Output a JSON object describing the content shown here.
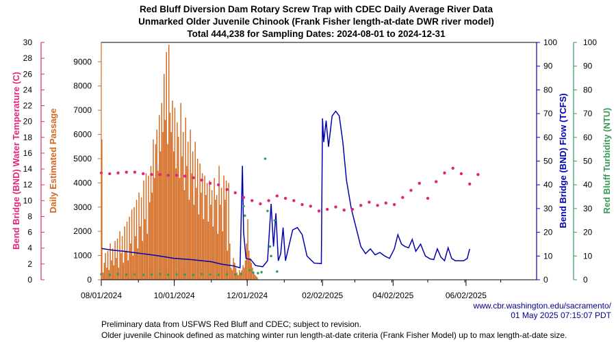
{
  "chart_data": {
    "type": "bar",
    "title_lines": [
      "Red Bluff Diversion Dam Rotary Screw Trap with CDEC Daily Average River Data",
      "Unmarked Older Juvenile Chinook (Frank Fisher length-at-date DWR river model)",
      "Total 444,238 for Sampling Dates: 2024-08-01 to 2024-12-31"
    ],
    "axes": {
      "temperature": {
        "label": "Bend Bridge (BND) Water Temperature (C)",
        "range": [
          0,
          30
        ],
        "ticks": [
          "0",
          "2",
          "4",
          "6",
          "8",
          "10",
          "12",
          "14",
          "16",
          "18",
          "20",
          "22",
          "24",
          "26",
          "28",
          "30"
        ],
        "color": "#e0257a"
      },
      "passage": {
        "label": "Daily Estimated Passage",
        "range": [
          0,
          9800
        ],
        "ticks": [
          "0",
          "1000",
          "2000",
          "3000",
          "4000",
          "5000",
          "6000",
          "7000",
          "8000",
          "9000"
        ],
        "color": "#d2691e"
      },
      "flow": {
        "label": "Bend Bridge (BND) Flow (TCFS)",
        "range": [
          0,
          100
        ],
        "ticks": [
          "0",
          "10",
          "20",
          "30",
          "40",
          "50",
          "60",
          "70",
          "80",
          "90",
          "100"
        ],
        "color": "#0000b0"
      },
      "turbidity": {
        "label": "Red Bluff Turbidity (NTU)",
        "range": [
          0,
          100
        ],
        "ticks": [
          "0",
          "10",
          "20",
          "30",
          "40",
          "50",
          "60",
          "70",
          "80",
          "90",
          "100"
        ],
        "color": "#3a9a5a"
      }
    },
    "x_axis": {
      "range": [
        "2024-08-01",
        "2025-07-31"
      ],
      "tick_labels": [
        "08/01/2024",
        "10/01/2024",
        "12/01/2024",
        "02/02/2025",
        "04/02/2025",
        "06/02/2025"
      ]
    },
    "series": [
      {
        "name": "Daily Estimated Passage",
        "kind": "bar",
        "color": "#d2691e",
        "axis": "passage",
        "x_start": "2024-08-01",
        "values": [
          5800,
          300,
          700,
          1100,
          500,
          1200,
          400,
          1500,
          800,
          1300,
          600,
          1600,
          900,
          1700,
          500,
          2000,
          1100,
          1800,
          700,
          2200,
          1200,
          2400,
          800,
          2600,
          1500,
          2900,
          1000,
          3000,
          1800,
          3300,
          1300,
          3600,
          2200,
          3400,
          1600,
          4100,
          2500,
          4400,
          1900,
          4300,
          3200,
          4700,
          3600,
          5800,
          4200,
          5600,
          6200,
          4500,
          6800,
          5300,
          7300,
          6100,
          8500,
          6600,
          9400,
          5600,
          9700,
          6900,
          6100,
          7400,
          5300,
          7100,
          4600,
          6500,
          5900,
          4200,
          7300,
          5100,
          6100,
          3700,
          6700,
          4700,
          5700,
          3300,
          6200,
          4400,
          5300,
          3100,
          5700,
          3800,
          5000,
          2700,
          4800,
          3600,
          4400,
          2500,
          4300,
          3500,
          4000,
          2400,
          4100,
          3100,
          3700,
          2200,
          4200,
          3300,
          3500,
          1900,
          4700,
          3100,
          3800,
          2000,
          4300,
          3300,
          4100,
          1200,
          4000,
          1500,
          500,
          400,
          900,
          700,
          500,
          300,
          200,
          400,
          300,
          400,
          600,
          500,
          800,
          1500,
          2500,
          1200,
          900,
          700,
          500,
          300,
          200,
          150,
          100
        ]
      },
      {
        "name": "Bend Bridge (BND) Water Temperature (C)",
        "kind": "scatter",
        "color": "#e0257a",
        "axis": "temperature",
        "points": [
          [
            "2024-08-01",
            13.5
          ],
          [
            "2024-08-08",
            13.4
          ],
          [
            "2024-08-15",
            13.5
          ],
          [
            "2024-08-22",
            13.6
          ],
          [
            "2024-08-29",
            13.6
          ],
          [
            "2024-09-05",
            13.4
          ],
          [
            "2024-09-12",
            13.3
          ],
          [
            "2024-09-19",
            13.3
          ],
          [
            "2024-09-26",
            13.2
          ],
          [
            "2024-10-03",
            13.2
          ],
          [
            "2024-10-10",
            13.1
          ],
          [
            "2024-10-17",
            12.9
          ],
          [
            "2024-10-24",
            12.6
          ],
          [
            "2024-10-31",
            12.2
          ],
          [
            "2024-11-07",
            12.0
          ],
          [
            "2024-11-14",
            11.4
          ],
          [
            "2024-11-21",
            11.0
          ],
          [
            "2024-11-28",
            10.4
          ],
          [
            "2024-12-05",
            10.0
          ],
          [
            "2024-12-12",
            9.6
          ],
          [
            "2024-12-19",
            10.0
          ],
          [
            "2024-12-26",
            10.6
          ],
          [
            "2025-01-02",
            10.3
          ],
          [
            "2025-01-09",
            10.0
          ],
          [
            "2025-01-16",
            9.5
          ],
          [
            "2025-01-23",
            9.3
          ],
          [
            "2025-01-30",
            8.7
          ],
          [
            "2025-02-06",
            8.9
          ],
          [
            "2025-02-13",
            9.2
          ],
          [
            "2025-02-20",
            8.8
          ],
          [
            "2025-02-27",
            8.9
          ],
          [
            "2025-03-06",
            9.4
          ],
          [
            "2025-03-13",
            9.8
          ],
          [
            "2025-03-20",
            9.4
          ],
          [
            "2025-03-27",
            9.7
          ],
          [
            "2025-04-03",
            9.5
          ],
          [
            "2025-04-10",
            10.4
          ],
          [
            "2025-04-17",
            11.3
          ],
          [
            "2025-04-24",
            12.2
          ],
          [
            "2025-05-01",
            10.3
          ],
          [
            "2025-05-08",
            12.4
          ],
          [
            "2025-05-15",
            13.5
          ],
          [
            "2025-05-22",
            14.1
          ],
          [
            "2025-05-29",
            13.4
          ],
          [
            "2025-06-05",
            12.1
          ],
          [
            "2025-06-12",
            13.3
          ]
        ]
      },
      {
        "name": "Bend Bridge (BND) Flow (TCFS)",
        "kind": "line",
        "color": "#0000b0",
        "axis": "flow",
        "points": [
          [
            "2024-08-01",
            13.2
          ],
          [
            "2024-08-10",
            12.5
          ],
          [
            "2024-08-20",
            12.0
          ],
          [
            "2024-09-01",
            11.2
          ],
          [
            "2024-09-15",
            10.3
          ],
          [
            "2024-10-01",
            9.0
          ],
          [
            "2024-10-15",
            8.5
          ],
          [
            "2024-11-01",
            7.6
          ],
          [
            "2024-11-10",
            6.5
          ],
          [
            "2024-11-20",
            5.8
          ],
          [
            "2024-11-25",
            5.0
          ],
          [
            "2024-11-27",
            48.0
          ],
          [
            "2024-11-28",
            20.0
          ],
          [
            "2024-11-30",
            9.0
          ],
          [
            "2024-12-04",
            8.5
          ],
          [
            "2024-12-08",
            6.0
          ],
          [
            "2024-12-14",
            5.5
          ],
          [
            "2024-12-18",
            8.0
          ],
          [
            "2024-12-21",
            32.0
          ],
          [
            "2024-12-23",
            14.0
          ],
          [
            "2024-12-25",
            28.0
          ],
          [
            "2024-12-27",
            8.0
          ],
          [
            "2024-12-29",
            11.0
          ],
          [
            "2024-12-31",
            22.0
          ],
          [
            "2025-01-02",
            8.0
          ],
          [
            "2025-01-08",
            21.0
          ],
          [
            "2025-01-12",
            22.0
          ],
          [
            "2025-01-16",
            19.0
          ],
          [
            "2025-01-20",
            10.0
          ],
          [
            "2025-01-26",
            7.0
          ],
          [
            "2025-02-01",
            6.8
          ],
          [
            "2025-02-02",
            68.0
          ],
          [
            "2025-02-03",
            58.0
          ],
          [
            "2025-02-05",
            67.0
          ],
          [
            "2025-02-07",
            56.0
          ],
          [
            "2025-02-10",
            69.0
          ],
          [
            "2025-02-13",
            71.0
          ],
          [
            "2025-02-16",
            69.0
          ],
          [
            "2025-02-19",
            58.0
          ],
          [
            "2025-02-22",
            42.0
          ],
          [
            "2025-02-26",
            30.0
          ],
          [
            "2025-03-02",
            22.0
          ],
          [
            "2025-03-06",
            14.0
          ],
          [
            "2025-03-10",
            11.0
          ],
          [
            "2025-03-14",
            13.0
          ],
          [
            "2025-03-18",
            10.5
          ],
          [
            "2025-03-22",
            11.5
          ],
          [
            "2025-03-26",
            10.0
          ],
          [
            "2025-03-30",
            9.0
          ],
          [
            "2025-04-03",
            13.0
          ],
          [
            "2025-04-06",
            19.0
          ],
          [
            "2025-04-09",
            15.0
          ],
          [
            "2025-04-12",
            14.0
          ],
          [
            "2025-04-15",
            13.5
          ],
          [
            "2025-04-18",
            17.0
          ],
          [
            "2025-04-21",
            12.0
          ],
          [
            "2025-04-25",
            15.0
          ],
          [
            "2025-04-29",
            10.0
          ],
          [
            "2025-05-03",
            8.8
          ],
          [
            "2025-05-06",
            8.5
          ],
          [
            "2025-05-09",
            13.0
          ],
          [
            "2025-05-12",
            9.5
          ],
          [
            "2025-05-15",
            8.0
          ],
          [
            "2025-05-18",
            13.5
          ],
          [
            "2025-05-21",
            9.0
          ],
          [
            "2025-05-24",
            8.0
          ],
          [
            "2025-05-28",
            8.0
          ],
          [
            "2025-05-31",
            8.0
          ],
          [
            "2025-06-03",
            9.0
          ],
          [
            "2025-06-05",
            13.0
          ]
        ]
      },
      {
        "name": "Red Bluff Turbidity (NTU)",
        "kind": "scatter",
        "color": "#3a9a5a",
        "axis": "turbidity",
        "points": [
          [
            "2024-08-01",
            2.3
          ],
          [
            "2024-08-08",
            2.1
          ],
          [
            "2024-08-15",
            2.4
          ],
          [
            "2024-08-22",
            2.2
          ],
          [
            "2024-08-29",
            2.3
          ],
          [
            "2024-09-05",
            2.1
          ],
          [
            "2024-09-12",
            2.2
          ],
          [
            "2024-09-19",
            2.4
          ],
          [
            "2024-09-26",
            2.1
          ],
          [
            "2024-10-03",
            2.3
          ],
          [
            "2024-10-10",
            2.2
          ],
          [
            "2024-10-17",
            2.0
          ],
          [
            "2024-10-24",
            2.4
          ],
          [
            "2024-10-31",
            2.2
          ],
          [
            "2024-11-07",
            2.1
          ],
          [
            "2024-11-14",
            2.3
          ],
          [
            "2024-11-21",
            2.2
          ],
          [
            "2024-11-26",
            2.5
          ],
          [
            "2024-11-28",
            31.0
          ],
          [
            "2024-11-29",
            27.0
          ],
          [
            "2024-12-03",
            4.0
          ],
          [
            "2024-12-06",
            3.0
          ],
          [
            "2024-12-10",
            2.8
          ],
          [
            "2024-12-13",
            3.2
          ],
          [
            "2024-12-16",
            51.0
          ],
          [
            "2024-12-18",
            29.0
          ],
          [
            "2024-12-20",
            14.0
          ],
          [
            "2024-12-21",
            10.0
          ],
          [
            "2024-12-24",
            25.0
          ],
          [
            "2024-12-26",
            3.5
          ]
        ]
      }
    ],
    "grid": false,
    "legend": "none"
  },
  "footer": {
    "source_url": "www.cbr.washington.edu/sacramento/",
    "timestamp": "01 May 2025 07:15:07 PDT",
    "note_1": "Preliminary data from USFWS Red Bluff and CDEC; subject to revision.",
    "note_2": "Older juvenile Chinook defined as matching winter run length-at-date criteria (Frank Fisher Model) up to max length-at-date size."
  }
}
